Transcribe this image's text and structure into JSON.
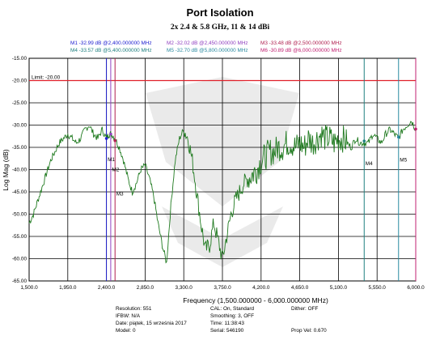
{
  "chart_data": {
    "type": "line",
    "title": "Port Isolation",
    "subtitle": "2x 2.4 & 5.8 GHz, 11 & 14 dBi",
    "xlabel": "Frequency (1,500.000000 - 6,000.000000 MHz)",
    "ylabel": "Log Mag (dB)",
    "xlim": [
      1500,
      6000
    ],
    "ylim": [
      -65,
      -15
    ],
    "x_ticks": [
      "1,500.0",
      "1,950.0",
      "2,400.0",
      "2,850.0",
      "3,300.0",
      "3,750.0",
      "4,200.0",
      "4,650.0",
      "5,100.0",
      "5,550.0",
      "6,000.0"
    ],
    "y_ticks": [
      "-15.00",
      "-20.00",
      "-25.00",
      "-30.00",
      "-35.00",
      "-40.00",
      "-45.00",
      "-50.00",
      "-55.00",
      "-60.00",
      "-65.00"
    ],
    "grid": true,
    "limit_line": {
      "label": "Limit: -20.00",
      "value": -20,
      "color": "#e0202a"
    },
    "trace_color": "#1f7a1f",
    "series": [
      {
        "x": [
          1500,
          1550,
          1600,
          1650,
          1700,
          1750,
          1800,
          1850,
          1900,
          1950,
          2000,
          2050,
          2100,
          2150,
          2200,
          2250,
          2300,
          2350,
          2400,
          2430,
          2460,
          2500,
          2550,
          2600,
          2650,
          2700,
          2750,
          2800,
          2850,
          2900,
          2950,
          3000,
          3050,
          3100,
          3150,
          3200,
          3250,
          3300,
          3350,
          3400,
          3450,
          3500,
          3550,
          3600,
          3650,
          3700,
          3750,
          3800,
          3850,
          3900,
          3950,
          4000,
          4050,
          4100,
          4150,
          4200,
          4250,
          4300,
          4350,
          4400,
          4450,
          4500,
          4550,
          4600,
          4650,
          4700,
          4750,
          4800,
          4850,
          4900,
          4950,
          5000,
          5050,
          5100,
          5150,
          5200,
          5250,
          5300,
          5350,
          5400,
          5450,
          5500,
          5550,
          5600,
          5650,
          5700,
          5750,
          5800,
          5850,
          5900,
          5950,
          6000
        ],
        "values": [
          -52,
          -50,
          -47,
          -44,
          -41,
          -38,
          -36,
          -34,
          -33,
          -32,
          -33,
          -34,
          -33,
          -31,
          -30,
          -32,
          -33,
          -31,
          -33,
          -32,
          -32,
          -33,
          -35,
          -38,
          -42,
          -45,
          -43,
          -40,
          -39,
          -42,
          -46,
          -52,
          -57,
          -61,
          -48,
          -38,
          -33,
          -31,
          -33,
          -38,
          -45,
          -52,
          -58,
          -57,
          -52,
          -56,
          -60,
          -55,
          -50,
          -47,
          -45,
          -43,
          -42,
          -41,
          -40,
          -38,
          -37,
          -36,
          -36,
          -35,
          -35,
          -34,
          -34,
          -35,
          -34,
          -35,
          -33,
          -34,
          -33,
          -32,
          -33,
          -33,
          -34,
          -33,
          -33,
          -34,
          -35,
          -33,
          -34,
          -34,
          -34,
          -32,
          -33,
          -34,
          -32,
          -31,
          -32,
          -33,
          -31,
          -30,
          -29,
          -31
        ]
      }
    ],
    "markers": [
      {
        "label": "M1",
        "readout": "M1 -32.99 dB @2,400.000000 MHz",
        "x": 2400,
        "value": -32.99,
        "color": "#2020d0"
      },
      {
        "label": "M2",
        "readout": "M2 -32.02 dB @2,450.000000 MHz",
        "x": 2450,
        "value": -32.02,
        "color": "#9040c0"
      },
      {
        "label": "M3",
        "readout": "M3 -33.48 dB @2,500.000000 MHz",
        "x": 2500,
        "value": -33.48,
        "color": "#b02050"
      },
      {
        "label": "M4",
        "readout": "M4 -33.57 dB @5,400.000000 MHz",
        "x": 5400,
        "value": -33.57,
        "color": "#208080"
      },
      {
        "label": "M5",
        "readout": "M5 -32.70 dB @5,800.000000 MHz",
        "x": 5800,
        "value": -32.7,
        "color": "#2a8aa0"
      },
      {
        "label": "M6",
        "readout": "M6 -30.89 dB @6,000.000000 MHz",
        "x": 6000,
        "value": -30.89,
        "color": "#c02070"
      }
    ]
  },
  "footer": {
    "col1": [
      "Resolution: 551",
      "IFBW: N/A",
      "Date: piątek, 15 września 2017",
      "Model: 0"
    ],
    "col2": [
      "CAL: On, Standard",
      "Smoothing: 3, OFF",
      "Time: 11:38:43",
      "Serial: 546190"
    ],
    "col3": [
      "Dither: OFF",
      "",
      "",
      "Prop Vel: 0.670"
    ]
  }
}
